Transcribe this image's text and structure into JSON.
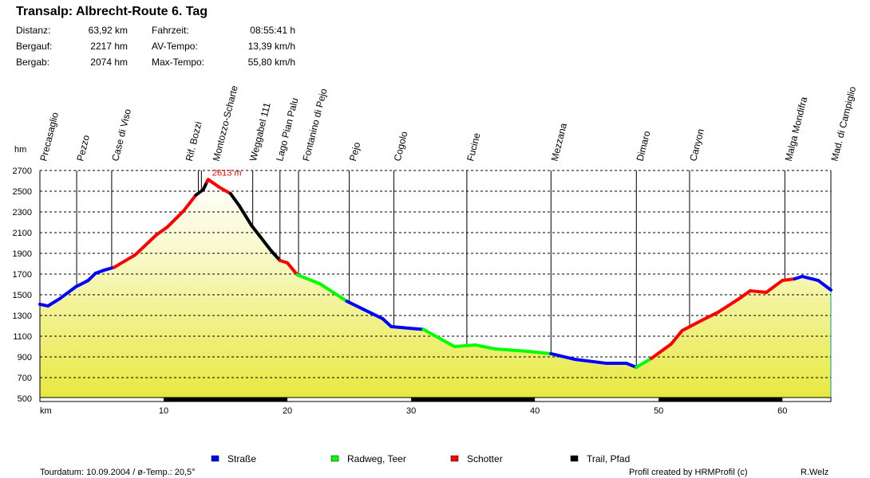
{
  "title": "Transalp: Albrecht-Route 6. Tag",
  "stats": [
    {
      "label": "Distanz:",
      "value": "63,92 km"
    },
    {
      "label": "Bergauf:",
      "value": "2217 hm"
    },
    {
      "label": "Bergab:",
      "value": "2074 hm"
    },
    {
      "label": "Fahrzeit:",
      "value": "08:55:41 h"
    },
    {
      "label": "AV-Tempo:",
      "value": "13,39 km/h"
    },
    {
      "label": "Max-Tempo:",
      "value": "55,80 km/h"
    }
  ],
  "footer": {
    "left": "Tourdatum: 10.09.2004  /  ø-Temp.: 20,5°",
    "credit": "Profil created by HRMProfil (c)",
    "author": "R.Welz"
  },
  "chart_data": {
    "type": "area",
    "ylabel": "hm",
    "xlabel": "km",
    "xlim": [
      0,
      63.92
    ],
    "ylim": [
      500,
      2700
    ],
    "yticks": [
      500,
      700,
      900,
      1100,
      1300,
      1500,
      1700,
      1900,
      2100,
      2300,
      2500,
      2700
    ],
    "xticks": [
      10,
      20,
      30,
      40,
      50,
      60
    ],
    "grid": true,
    "max_label": "2613 m",
    "max_point": {
      "km": 13.6,
      "hm": 2613
    },
    "surfaces": {
      "strasse": {
        "name": "Straße",
        "color": "#0000ff"
      },
      "radweg": {
        "name": "Radweg, Teer",
        "color": "#00ff00"
      },
      "schotter": {
        "name": "Schotter",
        "color": "#ff0000"
      },
      "trail": {
        "name": "Trail, Pfad",
        "color": "#000000"
      }
    },
    "legend_order": [
      "strasse",
      "radweg",
      "schotter",
      "trail"
    ],
    "legend_placement": "bottom",
    "profile": [
      [
        0,
        1408,
        "strasse"
      ],
      [
        0.65,
        1392,
        "strasse"
      ],
      [
        1.6,
        1462,
        "strasse"
      ],
      [
        2.9,
        1577,
        "strasse"
      ],
      [
        3.9,
        1638,
        "strasse"
      ],
      [
        4.5,
        1708,
        "strasse"
      ],
      [
        5.2,
        1738,
        "strasse"
      ],
      [
        6.0,
        1765,
        "schotter"
      ],
      [
        7.7,
        1885,
        "schotter"
      ],
      [
        9.4,
        2077,
        "schotter"
      ],
      [
        10.3,
        2154,
        "schotter"
      ],
      [
        11.6,
        2308,
        "schotter"
      ],
      [
        12.6,
        2462,
        "trail"
      ],
      [
        13.2,
        2515,
        "trail"
      ],
      [
        13.5,
        2590,
        "schotter"
      ],
      [
        13.6,
        2613,
        "schotter"
      ],
      [
        14.5,
        2538,
        "schotter"
      ],
      [
        15.4,
        2477,
        "trail"
      ],
      [
        16.1,
        2362,
        "trail"
      ],
      [
        17.1,
        2169,
        "trail"
      ],
      [
        17.7,
        2077,
        "trail"
      ],
      [
        18.7,
        1923,
        "trail"
      ],
      [
        19.4,
        1831,
        "schotter"
      ],
      [
        20.0,
        1808,
        "schotter"
      ],
      [
        20.8,
        1692,
        "radweg"
      ],
      [
        22.6,
        1608,
        "radweg"
      ],
      [
        24.8,
        1438,
        "strasse"
      ],
      [
        26.1,
        1362,
        "strasse"
      ],
      [
        27.7,
        1269,
        "strasse"
      ],
      [
        28.4,
        1192,
        "strasse"
      ],
      [
        31.0,
        1165,
        "radweg"
      ],
      [
        33.5,
        1000,
        "radweg"
      ],
      [
        35.2,
        1015,
        "radweg"
      ],
      [
        36.8,
        977,
        "radweg"
      ],
      [
        39.4,
        954,
        "radweg"
      ],
      [
        41.3,
        931,
        "strasse"
      ],
      [
        43.2,
        877,
        "strasse"
      ],
      [
        45.8,
        838,
        "strasse"
      ],
      [
        47.4,
        838,
        "strasse"
      ],
      [
        48.2,
        800,
        "radweg"
      ],
      [
        49.4,
        885,
        "schotter"
      ],
      [
        51.0,
        1023,
        "schotter"
      ],
      [
        51.9,
        1154,
        "schotter"
      ],
      [
        53.5,
        1254,
        "schotter"
      ],
      [
        54.8,
        1331,
        "schotter"
      ],
      [
        56.5,
        1462,
        "schotter"
      ],
      [
        57.4,
        1538,
        "schotter"
      ],
      [
        58.7,
        1523,
        "schotter"
      ],
      [
        60.0,
        1638,
        "schotter"
      ],
      [
        61.0,
        1654,
        "strasse"
      ],
      [
        61.6,
        1677,
        "strasse"
      ],
      [
        62.9,
        1638,
        "strasse"
      ],
      [
        63.92,
        1546,
        "strasse"
      ]
    ],
    "waypoints": [
      {
        "name": "Precasaglio",
        "km": 0
      },
      {
        "name": "Pezzo",
        "km": 2.97
      },
      {
        "name": "Case di Viso",
        "km": 5.8
      },
      {
        "name": "Rif. Bozzi",
        "km": 12.8
      },
      {
        "name": "Montozzo-Scharte",
        "km": 13.05
      },
      {
        "name": "Weggabel 111",
        "km": 17.2
      },
      {
        "name": "Lago Pian Palu",
        "km": 19.4
      },
      {
        "name": "Fontanino di Pejo",
        "km": 20.9
      },
      {
        "name": "Pejo",
        "km": 25.0
      },
      {
        "name": "Cogolo",
        "km": 28.6
      },
      {
        "name": "Fucine",
        "km": 34.5
      },
      {
        "name": "Mezzana",
        "km": 41.3
      },
      {
        "name": "Dimaro",
        "km": 48.2
      },
      {
        "name": "Canyon",
        "km": 52.5
      },
      {
        "name": "Malga Mondifra",
        "km": 60.2
      },
      {
        "name": "Mad. di Campiglio",
        "km": 63.92
      }
    ]
  }
}
